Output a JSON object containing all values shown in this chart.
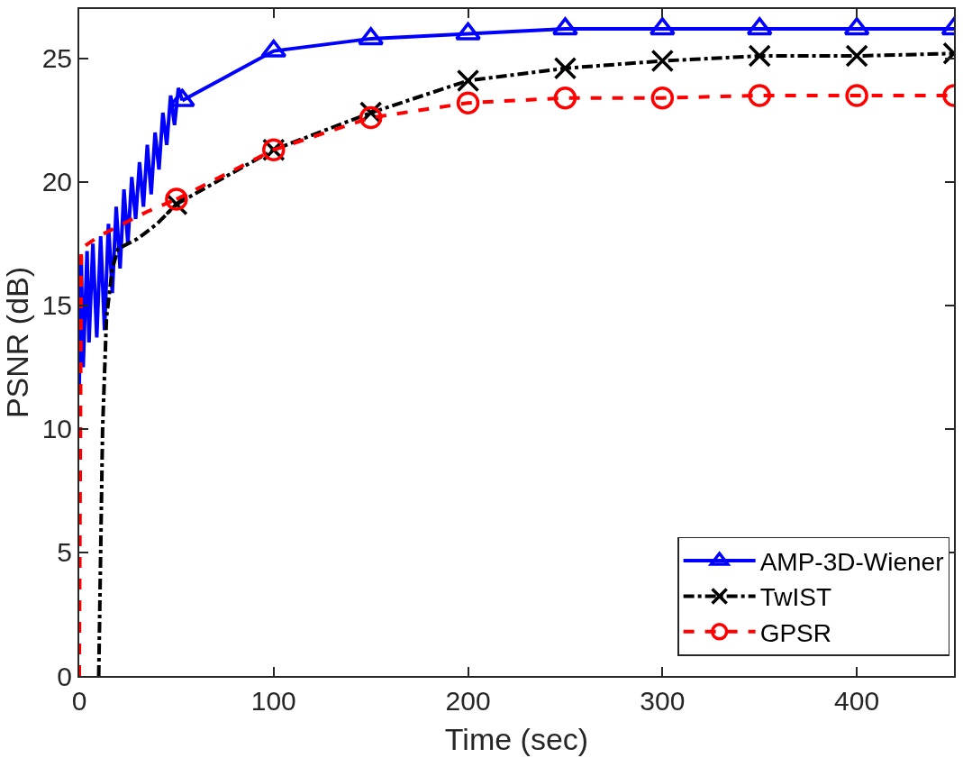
{
  "chart_data": {
    "type": "line",
    "xlabel": "Time (sec)",
    "ylabel": "PSNR (dB)",
    "xlim": [
      0,
      450
    ],
    "ylim": [
      0,
      27
    ],
    "xticks": [
      0,
      100,
      200,
      300,
      400
    ],
    "yticks": [
      0,
      5,
      10,
      15,
      20,
      25
    ],
    "grid": false,
    "legend": "bottom right",
    "series": [
      {
        "color": "#0000ff",
        "marker": "none",
        "line_style": "solid",
        "x": [
          0,
          1,
          2,
          4,
          5,
          7,
          9,
          11,
          13,
          15,
          17,
          19,
          21,
          23,
          25,
          27,
          29,
          31,
          33,
          35,
          37,
          39,
          41,
          43,
          45,
          47,
          49,
          51,
          53
        ],
        "values": [
          11.8,
          17,
          12.5,
          17.2,
          13.5,
          17.5,
          13.7,
          17.8,
          14,
          18.3,
          15.5,
          19,
          16.5,
          19.7,
          17.5,
          20.2,
          18.5,
          20.8,
          19,
          21.5,
          19.5,
          22,
          20.5,
          22.8,
          21.5,
          23.5,
          22.3,
          23.8,
          23.3
        ]
      },
      {
        "name": "AMP-3D-Wiener",
        "color": "#0000ff",
        "marker": "triangle",
        "line_style": "solid",
        "x": [
          53,
          100,
          150,
          200,
          250,
          300,
          350,
          400,
          450
        ],
        "values": [
          23.3,
          25.3,
          25.8,
          26.0,
          26.2,
          26.2,
          26.2,
          26.2,
          26.2
        ]
      },
      {
        "color": "#000000",
        "marker": "none",
        "line_style": "dashdot",
        "x": [
          10,
          11,
          12,
          14,
          17,
          20,
          30,
          40,
          50
        ],
        "values": [
          0,
          5,
          10,
          14.5,
          16.5,
          17.3,
          17.7,
          18.3,
          19.1
        ]
      },
      {
        "name": "TwIST",
        "color": "#000000",
        "marker": "cross",
        "line_style": "dashdot",
        "x": [
          50,
          100,
          150,
          200,
          250,
          300,
          350,
          400,
          450
        ],
        "values": [
          19.1,
          21.3,
          22.8,
          24.1,
          24.6,
          24.9,
          25.1,
          25.1,
          25.2
        ]
      },
      {
        "color": "#ff0000",
        "marker": "none",
        "line_style": "dashed",
        "x": [
          0,
          1,
          10,
          20,
          35,
          50
        ],
        "values": [
          0,
          17.3,
          17.8,
          18.2,
          18.8,
          19.3
        ]
      },
      {
        "name": "GPSR",
        "color": "#ff0000",
        "marker": "circle",
        "line_style": "dashed",
        "x": [
          50,
          100,
          150,
          200,
          250,
          300,
          350,
          400,
          450
        ],
        "values": [
          19.3,
          21.3,
          22.6,
          23.2,
          23.4,
          23.4,
          23.5,
          23.5,
          23.5
        ]
      }
    ]
  }
}
